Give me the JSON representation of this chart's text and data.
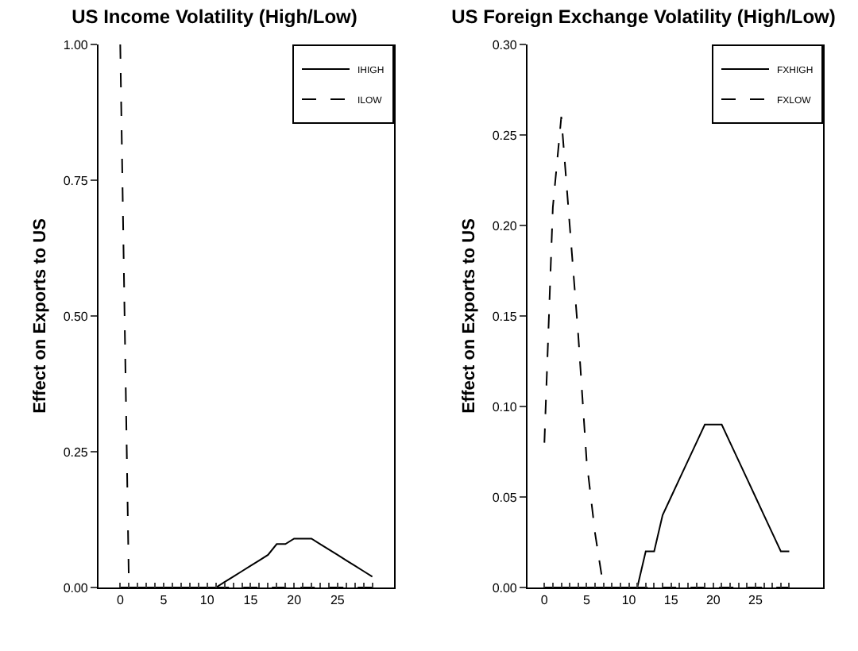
{
  "chart_data": [
    {
      "type": "line",
      "title": "US Income Volatility (High/Low)",
      "ylabel": "Effect on Exports to US",
      "x": [
        0,
        1,
        2,
        3,
        4,
        5,
        6,
        7,
        8,
        9,
        10,
        11,
        12,
        13,
        14,
        15,
        16,
        17,
        18,
        19,
        20,
        21,
        22,
        23,
        24,
        25,
        26,
        27,
        28,
        29
      ],
      "xlim": [
        -2.5,
        31.5
      ],
      "xticks": [
        0,
        {
          "value": 1,
          "label": null
        },
        {
          "value": 2,
          "label": null
        },
        {
          "value": 3,
          "label": null
        },
        {
          "value": 4,
          "label": null
        },
        5,
        {
          "value": 6,
          "label": null
        },
        {
          "value": 7,
          "label": null
        },
        {
          "value": 8,
          "label": null
        },
        {
          "value": 9,
          "label": null
        },
        10,
        {
          "value": 11,
          "label": null
        },
        {
          "value": 12,
          "label": null
        },
        {
          "value": 13,
          "label": null
        },
        {
          "value": 14,
          "label": null
        },
        15,
        {
          "value": 16,
          "label": null
        },
        {
          "value": 17,
          "label": null
        },
        {
          "value": 18,
          "label": null
        },
        {
          "value": 19,
          "label": null
        },
        20,
        {
          "value": 21,
          "label": null
        },
        {
          "value": 22,
          "label": null
        },
        {
          "value": 23,
          "label": null
        },
        {
          "value": 24,
          "label": null
        },
        25,
        {
          "value": 26,
          "label": null
        },
        {
          "value": 27,
          "label": null
        },
        {
          "value": 28,
          "label": null
        },
        {
          "value": 29,
          "label": null
        }
      ],
      "ylim": [
        0,
        1
      ],
      "yticks": [
        {
          "value": 0,
          "label": "0.00"
        },
        {
          "value": 0.25,
          "label": "0.25"
        },
        {
          "value": 0.5,
          "label": "0.50"
        },
        {
          "value": 0.75,
          "label": "0.75"
        },
        {
          "value": 1,
          "label": "1.00"
        }
      ],
      "grid": false,
      "legend": "top right",
      "marker": "none",
      "series": [
        {
          "name": "IHIGH",
          "color": "#000000",
          "line_style": "solid",
          "values": [
            0,
            0,
            0,
            0,
            0,
            0,
            0,
            0,
            0,
            0,
            0,
            0,
            0.01,
            0.02,
            0.03,
            0.04,
            0.05,
            0.06,
            0.08,
            0.08,
            0.09,
            0.09,
            0.09,
            0.08,
            0.07,
            0.06,
            0.05,
            0.04,
            0.03,
            0.02
          ]
        },
        {
          "name": "ILOW",
          "color": "#000000",
          "line_style": "dashed",
          "values": [
            1,
            0,
            0,
            0,
            0,
            0,
            0,
            0,
            0,
            0,
            0,
            0,
            0,
            0,
            0,
            0,
            0,
            0,
            0,
            0,
            0,
            0,
            0,
            0,
            0,
            0,
            0,
            0,
            0,
            0
          ]
        }
      ]
    },
    {
      "type": "line",
      "title": "US Foreign Exchange Volatility (High/Low)",
      "ylabel": "Effect on Exports to US",
      "x": [
        0,
        1,
        2,
        3,
        4,
        5,
        6,
        7,
        8,
        9,
        10,
        11,
        12,
        13,
        14,
        15,
        16,
        17,
        18,
        19,
        20,
        21,
        22,
        23,
        24,
        25,
        26,
        27,
        28,
        29
      ],
      "xlim": [
        -2,
        33
      ],
      "xticks": [
        0,
        {
          "value": 1,
          "label": null
        },
        {
          "value": 2,
          "label": null
        },
        {
          "value": 3,
          "label": null
        },
        {
          "value": 4,
          "label": null
        },
        5,
        {
          "value": 6,
          "label": null
        },
        {
          "value": 7,
          "label": null
        },
        {
          "value": 8,
          "label": null
        },
        {
          "value": 9,
          "label": null
        },
        10,
        {
          "value": 11,
          "label": null
        },
        {
          "value": 12,
          "label": null
        },
        {
          "value": 13,
          "label": null
        },
        {
          "value": 14,
          "label": null
        },
        15,
        {
          "value": 16,
          "label": null
        },
        {
          "value": 17,
          "label": null
        },
        {
          "value": 18,
          "label": null
        },
        {
          "value": 19,
          "label": null
        },
        20,
        {
          "value": 21,
          "label": null
        },
        {
          "value": 22,
          "label": null
        },
        {
          "value": 23,
          "label": null
        },
        {
          "value": 24,
          "label": null
        },
        25,
        {
          "value": 26,
          "label": null
        },
        {
          "value": 27,
          "label": null
        },
        {
          "value": 28,
          "label": null
        },
        {
          "value": 29,
          "label": null
        }
      ],
      "ylim": [
        0,
        0.3
      ],
      "yticks": [
        {
          "value": 0,
          "label": "0.00"
        },
        {
          "value": 0.05,
          "label": "0.05"
        },
        {
          "value": 0.1,
          "label": "0.10"
        },
        {
          "value": 0.15,
          "label": "0.15"
        },
        {
          "value": 0.2,
          "label": "0.20"
        },
        {
          "value": 0.25,
          "label": "0.25"
        },
        {
          "value": 0.3,
          "label": "0.30"
        }
      ],
      "grid": false,
      "legend": "top right",
      "marker": "none",
      "series": [
        {
          "name": "FXHIGH",
          "color": "#000000",
          "line_style": "solid",
          "values": [
            0,
            0,
            0,
            0,
            0,
            0,
            0,
            0,
            0,
            0,
            0,
            0,
            0.02,
            0.02,
            0.04,
            0.05,
            0.06,
            0.07,
            0.08,
            0.09,
            0.09,
            0.09,
            0.08,
            0.07,
            0.06,
            0.05,
            0.04,
            0.03,
            0.02,
            0.02
          ]
        },
        {
          "name": "FXLOW",
          "color": "#000000",
          "line_style": "dashed",
          "values": [
            0.08,
            0.21,
            0.26,
            0.2,
            0.14,
            0.07,
            0.03,
            0,
            0,
            0,
            0,
            0,
            0,
            0,
            0,
            0,
            0,
            0,
            0,
            0,
            0,
            0,
            0,
            0,
            0,
            0,
            0,
            0,
            0,
            0
          ]
        }
      ]
    }
  ]
}
